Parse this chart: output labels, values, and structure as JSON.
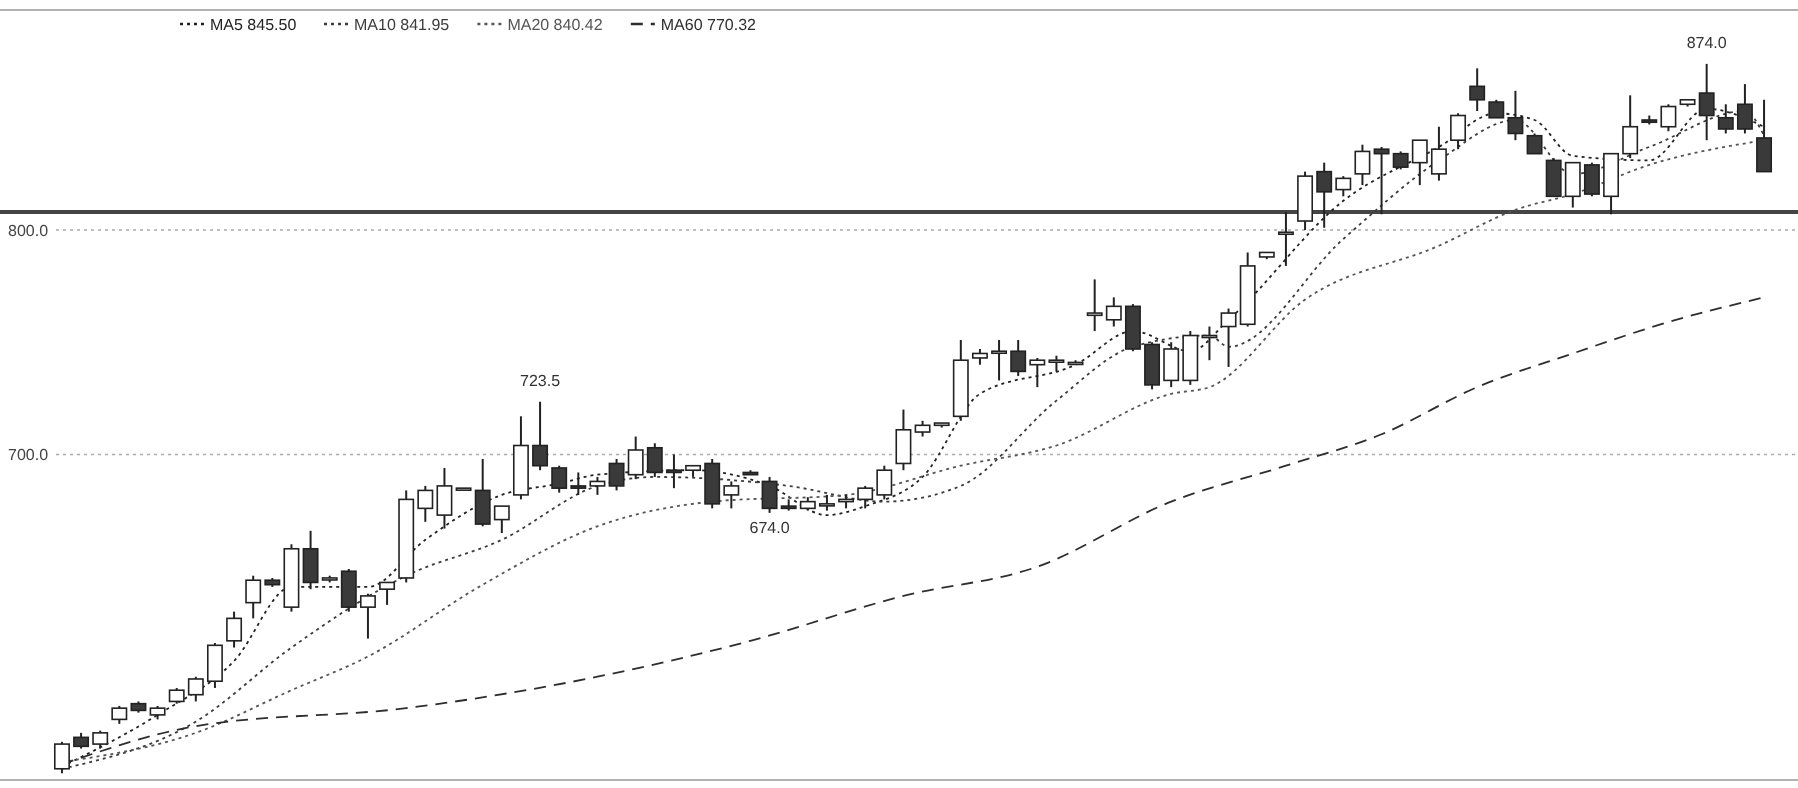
{
  "chart_data": {
    "type": "candlestick",
    "categories": [
      null,
      null,
      null,
      null,
      null,
      null,
      null,
      null,
      null,
      null,
      null,
      null,
      null,
      null,
      null,
      null,
      null,
      null,
      null,
      null,
      null,
      null,
      null,
      null,
      null,
      null,
      null,
      null,
      null,
      null,
      null,
      null,
      null,
      null,
      null,
      null,
      null,
      null,
      null,
      null,
      null,
      null,
      null,
      null,
      null,
      null,
      null,
      null,
      null,
      null,
      null,
      null,
      null,
      null,
      null,
      null,
      null,
      null,
      null,
      null,
      null,
      null,
      null,
      null,
      null,
      null,
      null,
      null,
      null,
      null,
      null,
      null,
      null,
      null,
      null,
      null,
      null,
      null,
      null,
      null,
      null,
      null,
      null,
      null,
      null,
      null,
      null,
      null,
      null,
      null
    ],
    "ohlc": [
      [
        560,
        572,
        558,
        571
      ],
      [
        574,
        576,
        569,
        570
      ],
      [
        571,
        577,
        569,
        576
      ],
      [
        582,
        588,
        580,
        587
      ],
      [
        589,
        590,
        585,
        586
      ],
      [
        584,
        588,
        582,
        587
      ],
      [
        590,
        596,
        589,
        595
      ],
      [
        593,
        601,
        590,
        600
      ],
      [
        599,
        616,
        596,
        615
      ],
      [
        617,
        630,
        614,
        627
      ],
      [
        634,
        646,
        627,
        644
      ],
      [
        644,
        645,
        641,
        642
      ],
      [
        632,
        660,
        630,
        658
      ],
      [
        658,
        666,
        640,
        643
      ],
      [
        645,
        646,
        643,
        645
      ],
      [
        648,
        649,
        630,
        632
      ],
      [
        632,
        638,
        618,
        637
      ],
      [
        640,
        643,
        633,
        643
      ],
      [
        645,
        684,
        643,
        680
      ],
      [
        676,
        686,
        670,
        684
      ],
      [
        673,
        694,
        667,
        686
      ],
      [
        685,
        685,
        684,
        685
      ],
      [
        684,
        698,
        668,
        669
      ],
      [
        671,
        677,
        665,
        677
      ],
      [
        682,
        717,
        680,
        704
      ],
      [
        704,
        723.5,
        693,
        695
      ],
      [
        694,
        695,
        683,
        685
      ],
      [
        686,
        692,
        682,
        685
      ],
      [
        686,
        690,
        682,
        688
      ],
      [
        696,
        698,
        684,
        686
      ],
      [
        691,
        708,
        689,
        702
      ],
      [
        703,
        705,
        690,
        692
      ],
      [
        693,
        700,
        685,
        692
      ],
      [
        693,
        695,
        690,
        695
      ],
      [
        696,
        698,
        676,
        678
      ],
      [
        682,
        688,
        676,
        686
      ],
      [
        692,
        693,
        691,
        691
      ],
      [
        688,
        690,
        674.0,
        676
      ],
      [
        677,
        680,
        675,
        676
      ],
      [
        676,
        681,
        675,
        679
      ],
      [
        678,
        682,
        675,
        678
      ],
      [
        679,
        682,
        676,
        680
      ],
      [
        680,
        686,
        676,
        685
      ],
      [
        682,
        695,
        680,
        693
      ],
      [
        696,
        720,
        693,
        711
      ],
      [
        710,
        715,
        708,
        713
      ],
      [
        713,
        714,
        712,
        714
      ],
      [
        717,
        751,
        715,
        742
      ],
      [
        743,
        747,
        740,
        745
      ],
      [
        746,
        751,
        733,
        746
      ],
      [
        746,
        751,
        735,
        737
      ],
      [
        740,
        743,
        730,
        742
      ],
      [
        742,
        744,
        737,
        742
      ],
      [
        741,
        742,
        740,
        741
      ],
      [
        762,
        778,
        755,
        763
      ],
      [
        760,
        770,
        757,
        766
      ],
      [
        766,
        767,
        746,
        747
      ],
      [
        749,
        750,
        729,
        731
      ],
      [
        733,
        750,
        730,
        747
      ],
      [
        733,
        755,
        731,
        753
      ],
      [
        753,
        757,
        742,
        753
      ],
      [
        757,
        765,
        739,
        763
      ],
      [
        758,
        790,
        757,
        784
      ],
      [
        788,
        790,
        787,
        790
      ],
      [
        799,
        808,
        784,
        799
      ],
      [
        804,
        826,
        800,
        824
      ],
      [
        826,
        830,
        801,
        817
      ],
      [
        818,
        824,
        815,
        823
      ],
      [
        825,
        838,
        820,
        835
      ],
      [
        836,
        837,
        807,
        834
      ],
      [
        834,
        835,
        827,
        828
      ],
      [
        830,
        840,
        820,
        840
      ],
      [
        825,
        846,
        822,
        836
      ],
      [
        840,
        852,
        836,
        851
      ],
      [
        864,
        872,
        853,
        858
      ],
      [
        857,
        858,
        850,
        850
      ],
      [
        850,
        862,
        840,
        843
      ],
      [
        842,
        843,
        834,
        834
      ],
      [
        831,
        832,
        815,
        815
      ],
      [
        815,
        830,
        810,
        830
      ],
      [
        829,
        830,
        815,
        816
      ],
      [
        815,
        834,
        807,
        834
      ],
      [
        834,
        860,
        832,
        846
      ],
      [
        849,
        851,
        847,
        848
      ],
      [
        846,
        856,
        844,
        855
      ],
      [
        856,
        858,
        855,
        858
      ],
      [
        861,
        874.0,
        840,
        851
      ],
      [
        850,
        856,
        843,
        845
      ],
      [
        856,
        865,
        843,
        845
      ],
      [
        841,
        858,
        826,
        826
      ]
    ],
    "value_labels": [
      null,
      null,
      null,
      null,
      null,
      null,
      null,
      null,
      null,
      null,
      null,
      null,
      null,
      null,
      null,
      null,
      null,
      null,
      null,
      null,
      null,
      null,
      null,
      null,
      null,
      "723.5",
      null,
      null,
      null,
      null,
      null,
      null,
      null,
      null,
      null,
      null,
      null,
      "674.0",
      null,
      null,
      null,
      null,
      null,
      null,
      null,
      null,
      null,
      null,
      null,
      null,
      null,
      null,
      null,
      null,
      null,
      null,
      null,
      null,
      null,
      null,
      null,
      null,
      null,
      null,
      null,
      null,
      null,
      null,
      null,
      null,
      null,
      null,
      null,
      null,
      null,
      null,
      null,
      null,
      null,
      null,
      null,
      null,
      null,
      null,
      null,
      null,
      "874.0",
      null,
      null,
      null
    ],
    "series": [
      {
        "name": "MA5 845.50",
        "type": "line",
        "color": "#222222",
        "line_style": "dotted",
        "values": [
          561,
          null,
          null,
          null,
          null,
          584,
          null,
          null,
          null,
          608,
          null,
          null,
          641,
          null,
          null,
          null,
          641,
          null,
          null,
          662,
          null,
          null,
          null,
          682,
          null,
          null,
          687,
          null,
          691,
          null,
          null,
          null,
          null,
          693,
          null,
          null,
          null,
          686,
          null,
          null,
          673,
          null,
          677,
          null,
          null,
          690,
          null,
          null,
          727,
          null,
          null,
          null,
          null,
          740,
          null,
          null,
          755,
          null,
          null,
          746,
          null,
          760,
          null,
          null,
          null,
          null,
          null,
          813,
          null,
          null,
          null,
          null,
          837,
          null,
          null,
          852,
          null,
          849,
          null,
          833,
          null,
          null,
          null,
          831,
          null,
          null,
          854,
          null,
          null,
          846
        ]
      },
      {
        "name": "MA10 841.95",
        "type": "line",
        "color": "#3c3c3c",
        "line_style": "dotted",
        "values": [
          560,
          null,
          null,
          null,
          null,
          null,
          null,
          581,
          null,
          null,
          null,
          null,
          614,
          null,
          null,
          null,
          null,
          null,
          646,
          null,
          null,
          null,
          null,
          662,
          null,
          null,
          null,
          null,
          686,
          null,
          null,
          690,
          null,
          null,
          null,
          null,
          null,
          null,
          686,
          null,
          null,
          null,
          null,
          679,
          null,
          null,
          null,
          686,
          null,
          null,
          null,
          null,
          724,
          null,
          null,
          null,
          748,
          null,
          null,
          null,
          753,
          748,
          null,
          null,
          null,
          null,
          null,
          796,
          null,
          null,
          null,
          null,
          831,
          null,
          null,
          null,
          849,
          null,
          null,
          825,
          null,
          null,
          null,
          837,
          null,
          null,
          null,
          null,
          853,
          842
        ]
      },
      {
        "name": "MA20 840.42",
        "type": "line",
        "color": "#555555",
        "line_style": "dotted",
        "values": [
          563,
          null,
          null,
          null,
          null,
          null,
          null,
          576,
          null,
          null,
          null,
          null,
          595,
          null,
          null,
          null,
          610,
          null,
          null,
          null,
          null,
          null,
          642,
          null,
          null,
          null,
          null,
          null,
          668,
          null,
          null,
          null,
          null,
          null,
          679,
          null,
          null,
          null,
          null,
          null,
          null,
          682,
          null,
          null,
          null,
          null,
          null,
          695,
          null,
          null,
          null,
          null,
          704,
          null,
          null,
          null,
          null,
          null,
          727,
          null,
          730,
          null,
          null,
          null,
          null,
          769,
          null,
          null,
          null,
          null,
          null,
          null,
          793,
          null,
          null,
          null,
          809,
          null,
          null,
          816,
          null,
          null,
          null,
          829,
          null,
          null,
          null,
          null,
          null,
          840
        ]
      },
      {
        "name": "MA60 770.32",
        "type": "line",
        "color": "#2e2e2e",
        "line_style": "dashed",
        "values": [
          562,
          null,
          null,
          null,
          null,
          null,
          null,
          579,
          null,
          null,
          null,
          null,
          null,
          null,
          null,
          null,
          null,
          null,
          587,
          null,
          null,
          null,
          null,
          null,
          null,
          null,
          null,
          null,
          601,
          null,
          null,
          null,
          null,
          null,
          null,
          null,
          617,
          null,
          null,
          null,
          null,
          null,
          null,
          null,
          637,
          null,
          null,
          null,
          null,
          null,
          null,
          650,
          null,
          null,
          null,
          null,
          null,
          null,
          679,
          null,
          null,
          null,
          null,
          null,
          695,
          null,
          null,
          null,
          null,
          709,
          null,
          null,
          null,
          null,
          730,
          null,
          null,
          null,
          null,
          745,
          null,
          null,
          null,
          null,
          759,
          null,
          null,
          null,
          null,
          770
        ]
      }
    ],
    "ylim": [
      555,
      898
    ],
    "yticks": [
      {
        "value": 700,
        "label": "700.0"
      },
      {
        "value": 800,
        "label": "800.0"
      }
    ],
    "grid": "y",
    "legend": "top left",
    "ref_lines": [
      {
        "axis": "y",
        "value": 808,
        "color": "#444444",
        "line_style": "solid"
      }
    ]
  }
}
